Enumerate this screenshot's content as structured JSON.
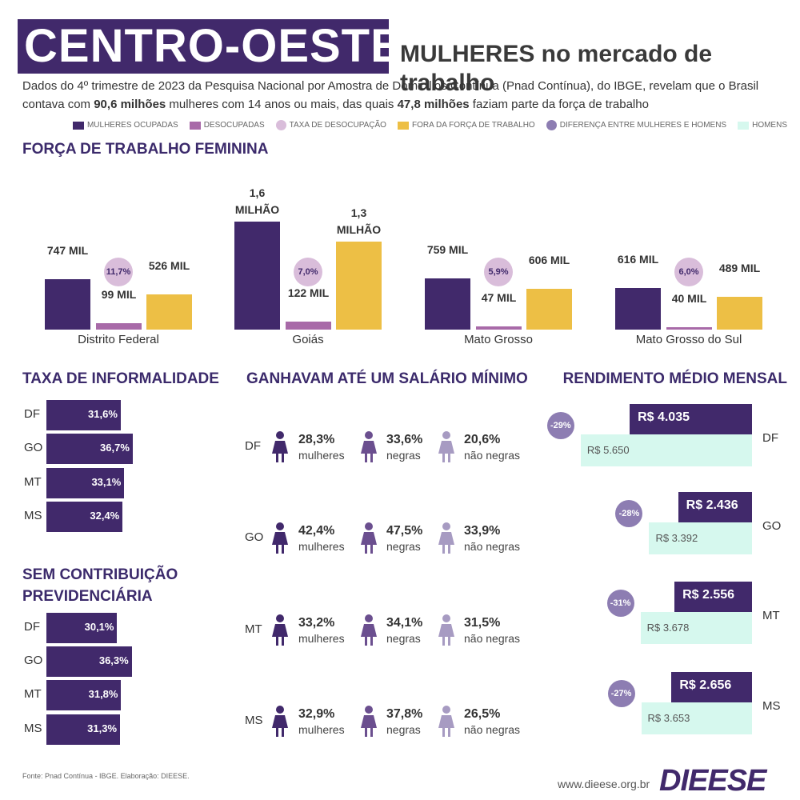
{
  "header": {
    "region": "CENTRO-OESTE",
    "title": "MULHERES no mercado de trabalho",
    "intro": [
      "Dados do 4º trimestre de 2023 da Pesquisa Nacional por Amostra de Domicilios Contínua (Pnad Contínua), do IBGE, revelam que o Brasil contava com ",
      "90,6 milhões",
      " mulheres com 14 anos ou mais, das quais ",
      "47,8 milhões",
      " faziam parte da força de trabalho"
    ]
  },
  "chart_data": [
    {
      "type": "bar",
      "title": "FORÇA DE TRABALHO FEMININA",
      "categories": [
        "Distrito Federal",
        "Goiás",
        "Mato Grosso",
        "Mato Grosso do Sul"
      ],
      "series": [
        {
          "name": "MULHERES OCUPADAS",
          "color": "#41296b",
          "values": [
            747,
            1600,
            759,
            616
          ],
          "value_labels": [
            "747 MIL",
            "1,6 MILHÃO",
            "759 MIL",
            "616 MIL"
          ]
        },
        {
          "name": "DESOCUPADAS",
          "color": "#a86aa8",
          "values": [
            99,
            122,
            47,
            40
          ],
          "value_labels": [
            "99 MIL",
            "122 MIL",
            "47 MIL",
            "40 MIL"
          ]
        },
        {
          "name": "FORA DA FORÇA DE TRABALHO",
          "color": "#edbf45",
          "values": [
            526,
            1300,
            606,
            489
          ],
          "value_labels": [
            "526 MIL",
            "1,3 MILHÃO",
            "606 MIL",
            "489 MIL"
          ]
        }
      ],
      "rate": {
        "name": "TAXA DE DESOCUPAÇÃO",
        "color": "#d9bdda",
        "values": [
          11.7,
          7.0,
          5.9,
          6.0
        ],
        "value_labels": [
          "11,7%",
          "7,0%",
          "5,9%",
          "6,0%"
        ]
      }
    },
    {
      "type": "bar",
      "orientation": "horizontal",
      "title": "TAXA DE INFORMALIDADE",
      "categories": [
        "DF",
        "GO",
        "MT",
        "MS"
      ],
      "color": "#41296b",
      "values": [
        31.6,
        36.7,
        33.1,
        32.4
      ],
      "value_labels": [
        "31,6%",
        "36,7%",
        "33,1%",
        "32,4%"
      ]
    },
    {
      "type": "bar",
      "orientation": "horizontal",
      "title": "SEM CONTRIBUIÇÃO PREVIDENCIÁRIA",
      "categories": [
        "DF",
        "GO",
        "MT",
        "MS"
      ],
      "color": "#41296b",
      "values": [
        30.1,
        36.3,
        31.8,
        31.3
      ],
      "value_labels": [
        "30,1%",
        "36,3%",
        "31,8%",
        "31,3%"
      ]
    },
    {
      "type": "bar",
      "orientation": "horizontal",
      "title": "RENDIMENTO MÉDIO MENSAL",
      "categories": [
        "DF",
        "GO",
        "MT",
        "MS"
      ],
      "series": [
        {
          "color": "#41296b",
          "values": [
            4035,
            2436,
            2556,
            2656
          ],
          "value_labels": [
            "R$ 4.035",
            "R$ 2.436",
            "R$ 2.556",
            "R$ 2.656"
          ]
        },
        {
          "name": "HOMENS",
          "color": "#d6f8ee",
          "values": [
            5650,
            3392,
            3678,
            3653
          ],
          "value_labels": [
            "R$ 5.650",
            "R$ 3.392",
            "R$ 3.678",
            "R$ 3.653"
          ]
        }
      ],
      "difference": {
        "name": "DIFERENÇA ENTRE MULHERES E HOMENS",
        "color": "#8d7db2",
        "values": [
          -29,
          -28,
          -31,
          -27
        ],
        "value_labels": [
          "-29%",
          "-28%",
          "-31%",
          "-27%"
        ]
      }
    }
  ],
  "minimum_wage": {
    "title": "GANHAVAM ATÉ UM SALÁRIO MÍNIMO",
    "groups": [
      "mulheres",
      "negras",
      "não negras"
    ],
    "colors": [
      "#41296b",
      "#6b4f8f",
      "#a79bc2"
    ],
    "rows": [
      {
        "label": "DF",
        "values": [
          "28,3%",
          "33,6%",
          "20,6%"
        ]
      },
      {
        "label": "GO",
        "values": [
          "42,4%",
          "47,5%",
          "33,9%"
        ]
      },
      {
        "label": "MT",
        "values": [
          "33,2%",
          "34,1%",
          "31,5%"
        ]
      },
      {
        "label": "MS",
        "values": [
          "32,9%",
          "37,8%",
          "26,5%"
        ]
      }
    ]
  },
  "footer": {
    "source": "Fonte: Pnad Contínua - IBGE. Elaboração: DIEESE.",
    "url": "www.dieese.org.br",
    "logo": "DIEESE"
  }
}
